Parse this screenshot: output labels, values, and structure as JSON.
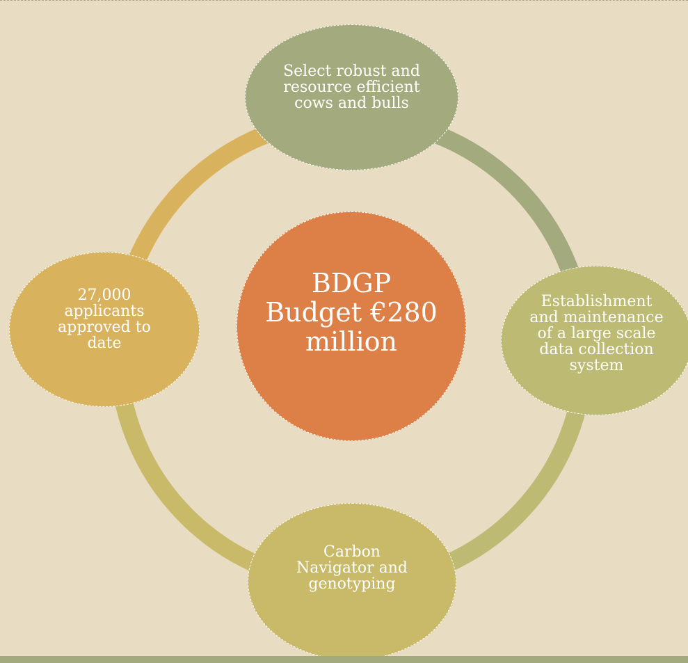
{
  "diagram": {
    "center": {
      "label": "BDGP Budget €280 million",
      "color": "#dd8047"
    },
    "nodes": [
      {
        "id": "top",
        "label": "Select robust and resource efficient cows and bulls",
        "color": "#a3aa7e"
      },
      {
        "id": "right",
        "label": "Establishment and maintenance of a large scale data collection system",
        "color": "#bcba73"
      },
      {
        "id": "bottom",
        "label": "Carbon Navigator and genotyping",
        "color": "#c8ba68"
      },
      {
        "id": "left",
        "label": "27,000 applicants approved to date",
        "color": "#d9b25d"
      }
    ],
    "ring_colors": {
      "top_right": "#a3aa7e",
      "bottom_right": "#bcba73",
      "bottom_left": "#c8ba68",
      "top_left": "#d9b25d"
    },
    "background_color": "#e8dcc2",
    "footer_bar_color": "#a3aa7e"
  }
}
